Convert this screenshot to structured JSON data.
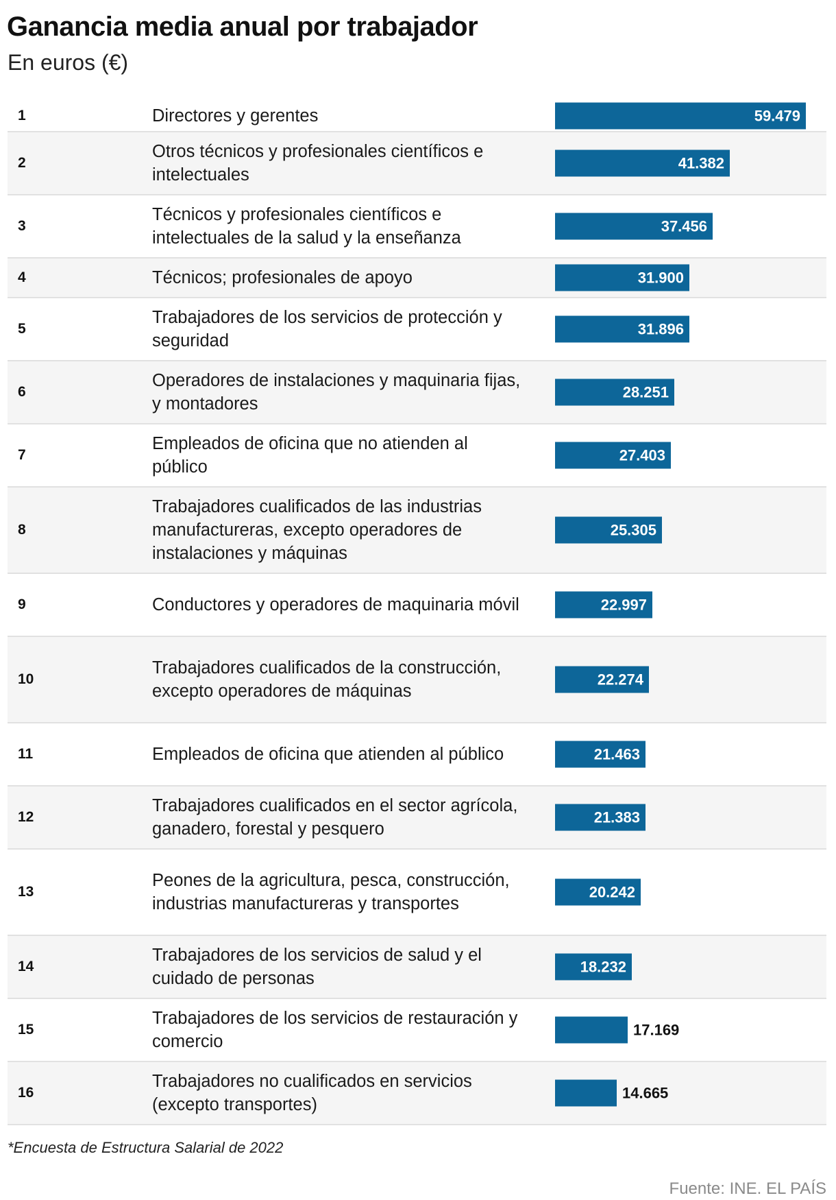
{
  "chart_data": {
    "type": "bar",
    "orientation": "horizontal",
    "title": "Ganancia media anual por trabajador",
    "subtitle": "En euros (€)",
    "rows": [
      {
        "rank": "1",
        "label": "Directores y gerentes",
        "value": 59479,
        "value_label": "59.479"
      },
      {
        "rank": "2",
        "label": "Otros técnicos y profesionales científicos e intelectuales",
        "value": 41382,
        "value_label": "41.382"
      },
      {
        "rank": "3",
        "label": "Técnicos y profesionales científicos e intelectuales de la salud y la enseñanza",
        "value": 37456,
        "value_label": "37.456"
      },
      {
        "rank": "4",
        "label": "Técnicos; profesionales de apoyo",
        "value": 31900,
        "value_label": "31.900"
      },
      {
        "rank": "5",
        "label": "Trabajadores de los servicios de protección y seguridad",
        "value": 31896,
        "value_label": "31.896"
      },
      {
        "rank": "6",
        "label": "Operadores de instalaciones y maquinaria fijas, y montadores",
        "value": 28251,
        "value_label": "28.251"
      },
      {
        "rank": "7",
        "label": "Empleados de oficina que no atienden al público",
        "value": 27403,
        "value_label": "27.403"
      },
      {
        "rank": "8",
        "label": "Trabajadores cualificados de las industrias manufactureras, excepto operadores de instalaciones y máquinas",
        "value": 25305,
        "value_label": "25.305"
      },
      {
        "rank": "9",
        "label": "Conductores y operadores de maquinaria móvil",
        "value": 22997,
        "value_label": "22.997"
      },
      {
        "rank": "10",
        "label": "Trabajadores cualificados de la construcción, excepto operadores de máquinas",
        "value": 22274,
        "value_label": "22.274"
      },
      {
        "rank": "11",
        "label": "Empleados de oficina que atienden al público",
        "value": 21463,
        "value_label": "21.463"
      },
      {
        "rank": "12",
        "label": "Trabajadores cualificados en el sector agrícola, ganadero, forestal y pesquero",
        "value": 21383,
        "value_label": "21.383"
      },
      {
        "rank": "13",
        "label": "Peones de la agricultura, pesca, construcción, industrias manufactureras y transportes",
        "value": 20242,
        "value_label": "20.242"
      },
      {
        "rank": "14",
        "label": "Trabajadores de los servicios de salud y el cuidado de personas",
        "value": 18232,
        "value_label": "18.232"
      },
      {
        "rank": "15",
        "label": "Trabajadores de los servicios de restauración y comercio",
        "value": 17169,
        "value_label": "17.169"
      },
      {
        "rank": "16",
        "label": "Trabajadores no cualificados en servicios (excepto transportes)",
        "value": 14665,
        "value_label": "14.665"
      }
    ],
    "xlim": [
      0,
      59479
    ],
    "bar_color": "#0d6699",
    "alternating_row_color": "#f5f5f5"
  },
  "footnote": "*Encuesta de Estructura Salarial de 2022",
  "source": "Fuente: INE. EL PAÍS"
}
